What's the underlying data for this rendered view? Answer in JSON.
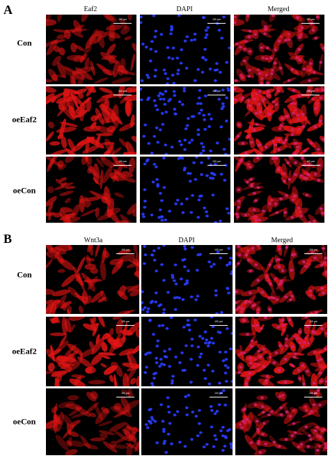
{
  "panels": [
    {
      "letter": "A",
      "columns": [
        "Eaf2",
        "DAPI",
        "Merged"
      ],
      "rows": [
        "Con",
        "oeEaf2",
        "oeCon"
      ]
    },
    {
      "letter": "B",
      "columns": [
        "Wnt3a",
        "DAPI",
        "Merged"
      ],
      "rows": [
        "Con",
        "oeEaf2",
        "oeCon"
      ]
    }
  ],
  "scale_bar_label": "100 μm",
  "channel_colors": {
    "red": "#e01414",
    "blue": "#2a3cff",
    "merged": "#d0227a"
  },
  "signal_intensity": {
    "A": [
      0.55,
      0.9,
      0.6
    ],
    "B": [
      0.65,
      0.9,
      0.5
    ]
  }
}
